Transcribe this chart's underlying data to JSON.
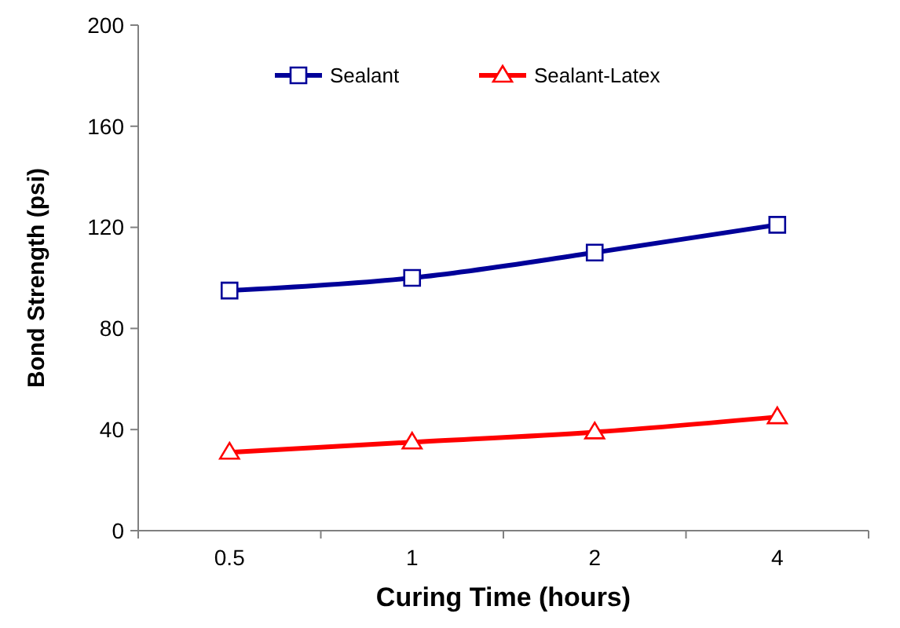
{
  "chart_data": {
    "type": "line",
    "xlabel": "Curing Time (hours)",
    "ylabel": "Bond Strength (psi)",
    "categories": [
      "0.5",
      "1",
      "2",
      "4"
    ],
    "series": [
      {
        "name": "Sealant",
        "color": "#000099",
        "marker": "square",
        "values": [
          95,
          100,
          110,
          121
        ]
      },
      {
        "name": "Sealant-Latex",
        "color": "#ff0000",
        "marker": "triangle",
        "values": [
          31,
          35,
          39,
          45
        ]
      }
    ],
    "ylim": [
      0,
      200
    ],
    "yticks": [
      0,
      40,
      80,
      120,
      160,
      200
    ],
    "grid": false,
    "legend": "top"
  }
}
